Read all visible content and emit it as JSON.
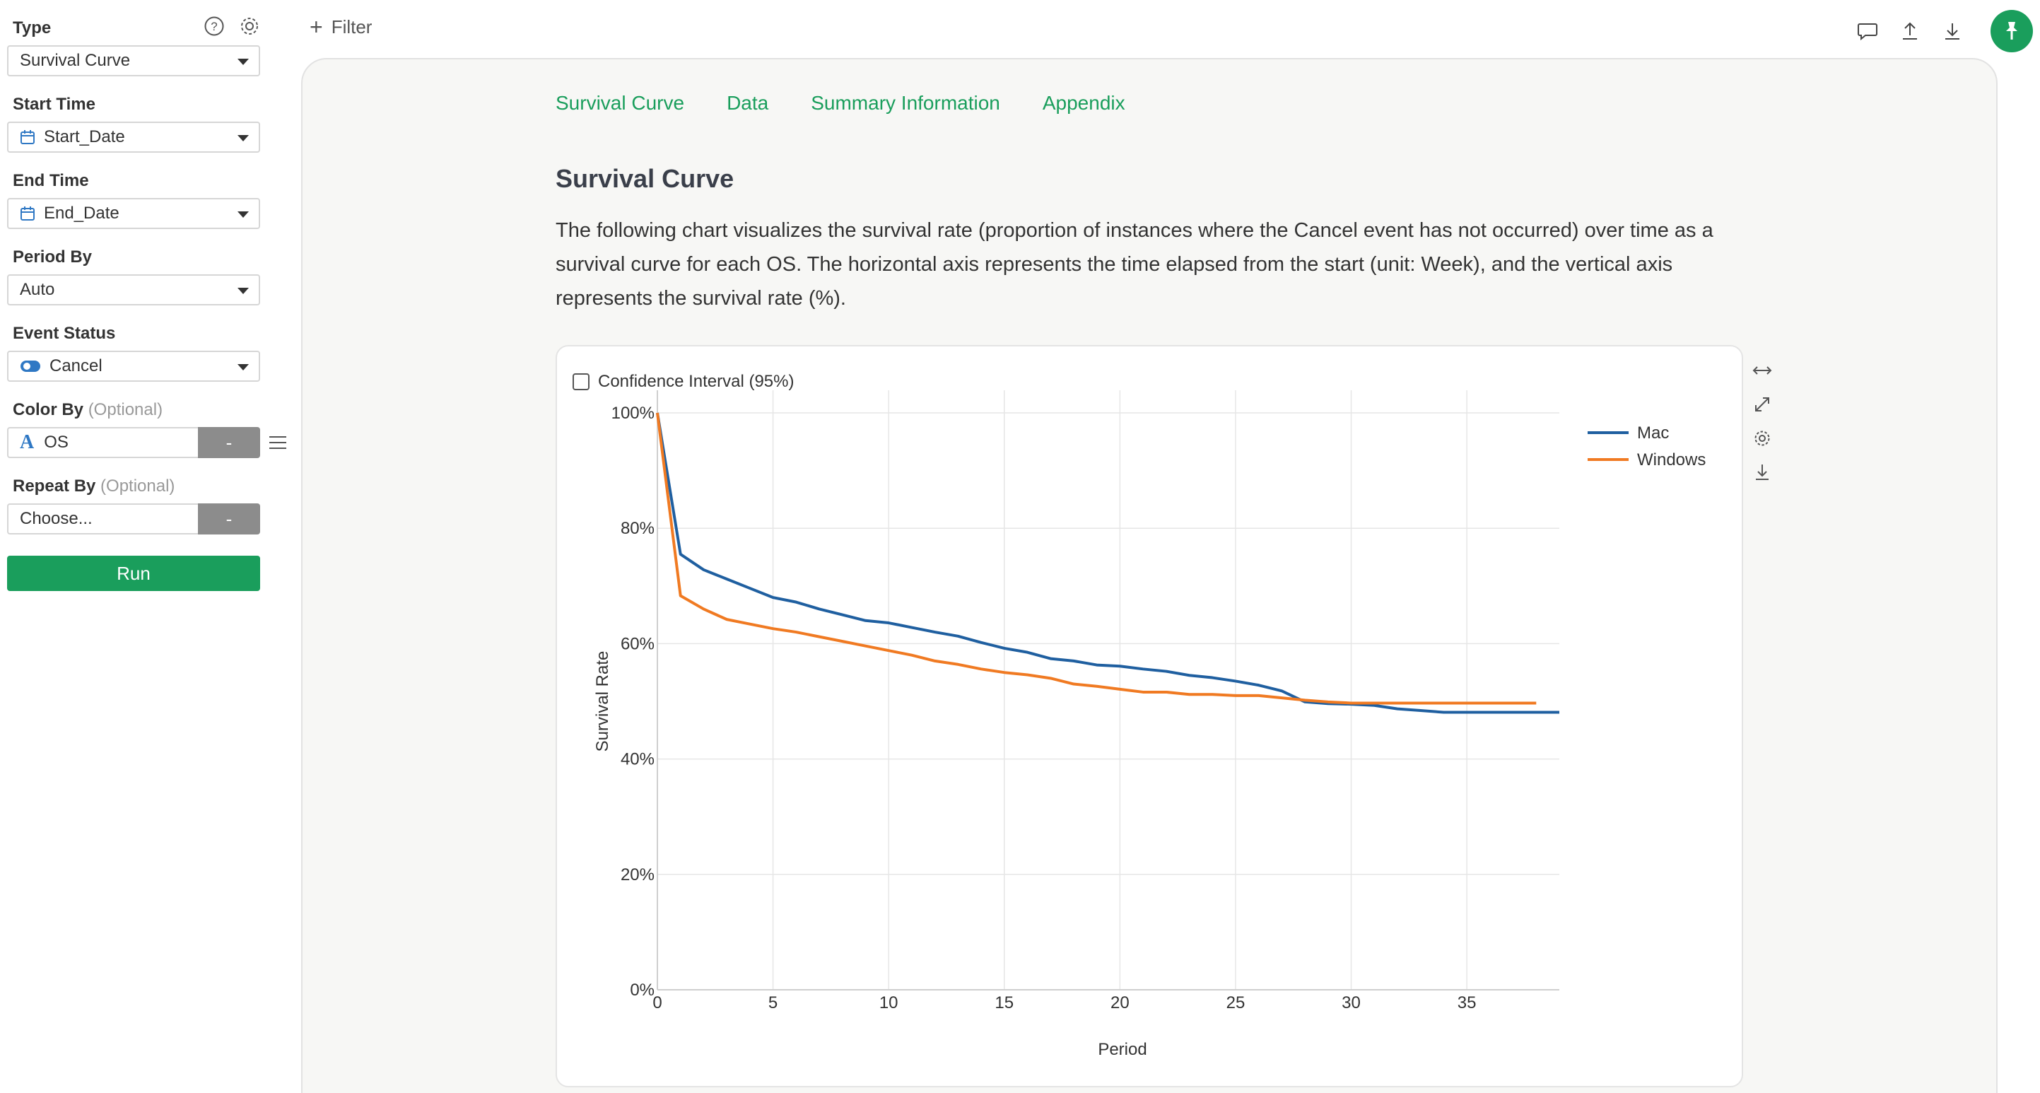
{
  "sidebar": {
    "type_label": "Type",
    "type_value": "Survival Curve",
    "start_label": "Start Time",
    "start_value": "Start_Date",
    "end_label": "End Time",
    "end_value": "End_Date",
    "period_label": "Period By",
    "period_value": "Auto",
    "event_label": "Event Status",
    "event_value": "Cancel",
    "color_label": "Color By",
    "color_optional": "(Optional)",
    "color_value": "OS",
    "color_type_glyph": "A",
    "repeat_label": "Repeat By",
    "repeat_optional": "(Optional)",
    "repeat_value": "Choose...",
    "split_btn": "-",
    "run_label": "Run"
  },
  "topbar": {
    "filter_label": "Filter"
  },
  "tabs": [
    "Survival Curve",
    "Data",
    "Summary Information",
    "Appendix"
  ],
  "section": {
    "title": "Survival Curve",
    "description": "The following chart visualizes the survival rate (proportion of instances where the Cancel event has not occurred) over time as a survival curve for each OS. The horizontal axis represents the time elapsed from the start (unit: Week), and the vertical axis represents the survival rate (%)."
  },
  "chart": {
    "ci_label": "Confidence Interval (95%)"
  },
  "colors": {
    "accent": "#1a9e5c",
    "mac": "#1f5fa0",
    "windows": "#f07a22"
  },
  "chart_data": {
    "type": "line",
    "title": "",
    "xlabel": "Period",
    "ylabel": "Survival Rate",
    "xlim": [
      0,
      39
    ],
    "ylim": [
      0,
      100
    ],
    "x_ticks": [
      0,
      5,
      10,
      15,
      20,
      25,
      30,
      35
    ],
    "y_ticks": [
      "0%",
      "20%",
      "40%",
      "60%",
      "80%",
      "100%"
    ],
    "grid": true,
    "legend": "top-right",
    "series": [
      {
        "name": "Mac",
        "color": "#1f5fa0",
        "x": [
          0,
          1,
          2,
          3,
          4,
          5,
          6,
          7,
          8,
          9,
          10,
          11,
          12,
          13,
          14,
          15,
          16,
          17,
          18,
          19,
          20,
          21,
          22,
          23,
          24,
          25,
          26,
          27,
          28,
          29,
          30,
          31,
          32,
          33,
          34,
          35,
          36,
          37,
          38,
          39
        ],
        "values": [
          100,
          75.5,
          72.8,
          71.2,
          69.6,
          68.0,
          67.2,
          66.0,
          65.0,
          64.0,
          63.6,
          62.8,
          62.0,
          61.3,
          60.2,
          59.2,
          58.5,
          57.4,
          57.0,
          56.3,
          56.1,
          55.6,
          55.2,
          54.5,
          54.1,
          53.5,
          52.8,
          51.8,
          49.9,
          49.6,
          49.5,
          49.3,
          48.7,
          48.4,
          48.1,
          48.1,
          48.1,
          48.1,
          48.1,
          48.1
        ]
      },
      {
        "name": "Windows",
        "color": "#f07a22",
        "x": [
          0,
          1,
          2,
          3,
          4,
          5,
          6,
          7,
          8,
          9,
          10,
          11,
          12,
          13,
          14,
          15,
          16,
          17,
          18,
          19,
          20,
          21,
          22,
          23,
          24,
          25,
          26,
          27,
          28,
          29,
          30,
          31,
          32,
          33,
          34,
          35,
          36,
          37,
          38
        ],
        "values": [
          100,
          68.3,
          66.0,
          64.2,
          63.4,
          62.6,
          62.0,
          61.2,
          60.4,
          59.6,
          58.8,
          58.0,
          57.0,
          56.4,
          55.6,
          55.0,
          54.6,
          54.0,
          53.0,
          52.6,
          52.1,
          51.6,
          51.6,
          51.2,
          51.2,
          51.0,
          51.0,
          50.6,
          50.2,
          49.9,
          49.7,
          49.7,
          49.7,
          49.7,
          49.7,
          49.7,
          49.7,
          49.7,
          49.7
        ]
      }
    ]
  }
}
